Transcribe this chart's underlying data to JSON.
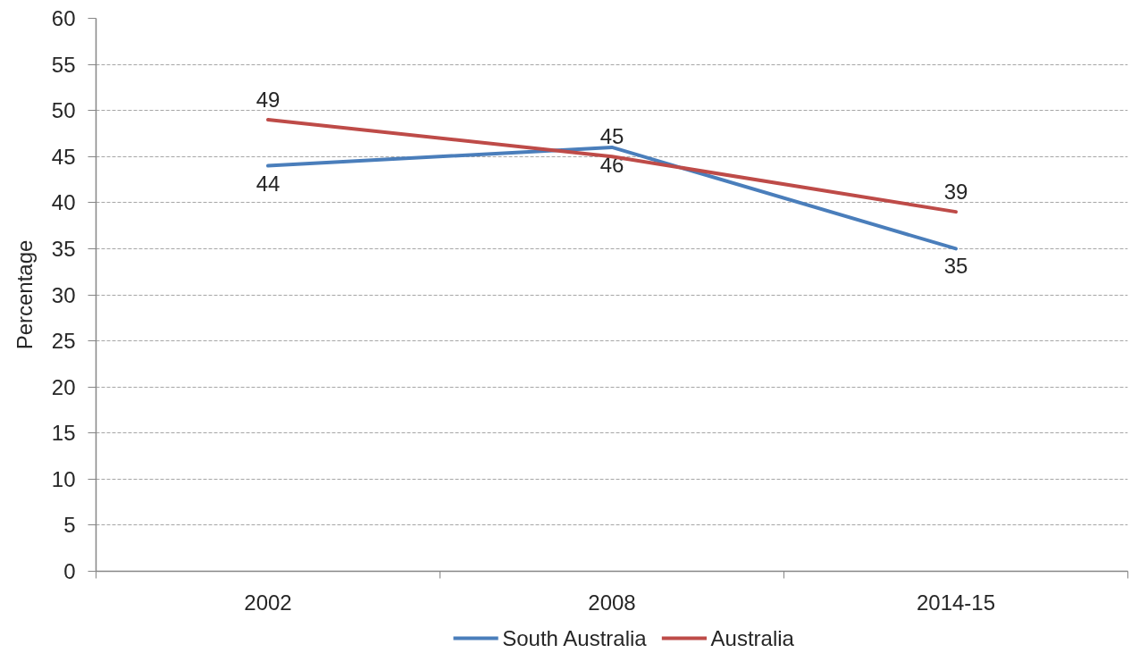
{
  "chart_data": {
    "type": "line",
    "ylabel": "Percentage",
    "categories": [
      "2002",
      "2008",
      "2014-15"
    ],
    "series": [
      {
        "name": "South Australia",
        "color": "#4a7ebb",
        "values": [
          44,
          46,
          35
        ]
      },
      {
        "name": "Australia",
        "color": "#be4b48",
        "values": [
          49,
          45,
          39
        ]
      }
    ],
    "ylim": [
      0,
      60
    ],
    "yticks": [
      0,
      5,
      10,
      15,
      20,
      25,
      30,
      35,
      40,
      45,
      50,
      55,
      60
    ],
    "grid": "y",
    "legend": "bottom",
    "data_labels": true,
    "line_style": "solid"
  }
}
